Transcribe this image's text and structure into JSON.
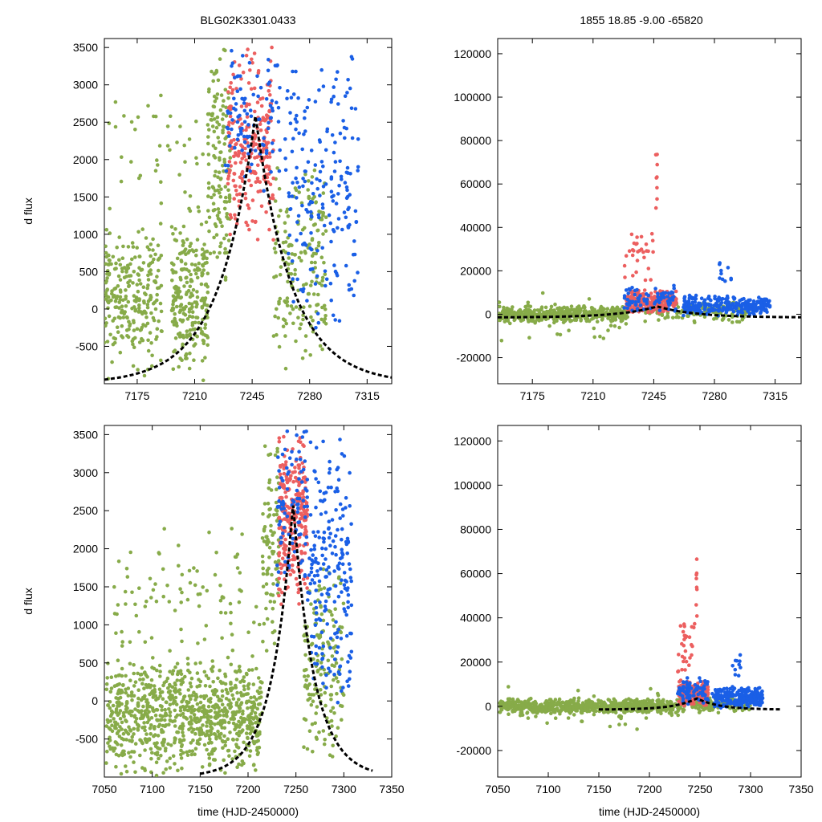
{
  "titles": {
    "left": "BLG02K3301.0433",
    "right": "1855  18.85  -9.00  -65820"
  },
  "colors": {
    "green": "#87ab49",
    "red": "#ec5f5f",
    "blue": "#1a5fe6",
    "model": "#000000",
    "axis": "#000000"
  },
  "chart_data": [
    {
      "id": "top-left",
      "type": "scatter",
      "xlabel": "",
      "ylabel": "d flux",
      "xlim": [
        7155,
        7330
      ],
      "ylim": [
        -1000,
        3620
      ],
      "xticks": [
        7175,
        7210,
        7245,
        7280,
        7315
      ],
      "yticks": [
        -500,
        0,
        500,
        1000,
        1500,
        2000,
        2500,
        3000,
        3500
      ],
      "series": [
        {
          "name": "survey-green",
          "color": "green",
          "seed": 11,
          "clusters": [
            {
              "x0": 7155,
              "x1": 7190,
              "ymin": -1000,
              "ymax": 1200,
              "n": 260
            },
            {
              "x0": 7196,
              "x1": 7218,
              "ymin": -1000,
              "ymax": 1400,
              "n": 240
            },
            {
              "x0": 7218,
              "x1": 7232,
              "ymin": 200,
              "ymax": 3600,
              "n": 140
            },
            {
              "x0": 7258,
              "x1": 7290,
              "ymin": -900,
              "ymax": 2000,
              "n": 180
            },
            {
              "x0": 7155,
              "x1": 7215,
              "ymin": 1200,
              "ymax": 3000,
              "n": 40
            }
          ]
        },
        {
          "name": "followup-red",
          "color": "red",
          "seed": 23,
          "clusters": [
            {
              "x0": 7230,
              "x1": 7258,
              "ymin": 800,
              "ymax": 3600,
              "n": 240
            }
          ]
        },
        {
          "name": "followup-blue",
          "color": "blue",
          "seed": 37,
          "clusters": [
            {
              "x0": 7228,
              "x1": 7262,
              "ymin": 1500,
              "ymax": 3600,
              "n": 100
            },
            {
              "x0": 7265,
              "x1": 7310,
              "ymin": -500,
              "ymax": 3600,
              "n": 200
            }
          ]
        }
      ],
      "model": {
        "t0": 7247,
        "peak": 2600,
        "base": -1000,
        "tau": 22,
        "x0": 7155,
        "x1": 7330
      }
    },
    {
      "id": "top-right",
      "type": "scatter",
      "xlabel": "",
      "ylabel": "",
      "xlim": [
        7155,
        7330
      ],
      "ylim": [
        -32000,
        127000
      ],
      "xticks": [
        7175,
        7210,
        7245,
        7280,
        7315
      ],
      "yticks": [
        -20000,
        0,
        20000,
        40000,
        60000,
        80000,
        100000,
        120000
      ],
      "series": [
        {
          "name": "survey-green",
          "color": "green",
          "seed": 41,
          "clusters": [
            {
              "x0": 7155,
              "x1": 7230,
              "ymin": -4000,
              "ymax": 4000,
              "n": 420
            },
            {
              "x0": 7155,
              "x1": 7230,
              "ymin": -15000,
              "ymax": 12000,
              "n": 40
            },
            {
              "x0": 7240,
              "x1": 7300,
              "ymin": -4000,
              "ymax": 6000,
              "n": 150
            }
          ]
        },
        {
          "name": "followup-red",
          "color": "red",
          "seed": 53,
          "clusters": [
            {
              "x0": 7229,
              "x1": 7258,
              "ymin": 0,
              "ymax": 12000,
              "n": 260
            },
            {
              "x0": 7228,
              "x1": 7245,
              "ymin": 12000,
              "ymax": 42000,
              "n": 30
            },
            {
              "x0": 7246,
              "x1": 7247,
              "ymin": 36000,
              "ymax": 83000,
              "n": 8
            }
          ]
        },
        {
          "name": "followup-blue",
          "color": "blue",
          "seed": 67,
          "clusters": [
            {
              "x0": 7228,
              "x1": 7258,
              "ymin": 0,
              "ymax": 14000,
              "n": 80
            },
            {
              "x0": 7262,
              "x1": 7312,
              "ymin": -1000,
              "ymax": 9000,
              "n": 260
            },
            {
              "x0": 7282,
              "x1": 7290,
              "ymin": 10000,
              "ymax": 28000,
              "n": 10
            }
          ]
        }
      ],
      "model": {
        "t0": 7247,
        "peak": 3600,
        "base": -1500,
        "tau": 22,
        "x0": 7155,
        "x1": 7330
      }
    },
    {
      "id": "bottom-left",
      "type": "scatter",
      "xlabel": "time (HJD-2450000)",
      "ylabel": "d flux",
      "xlim": [
        7050,
        7350
      ],
      "ylim": [
        -1000,
        3620
      ],
      "xticks": [
        7050,
        7100,
        7150,
        7200,
        7250,
        7300,
        7350
      ],
      "yticks": [
        -500,
        0,
        500,
        1000,
        1500,
        2000,
        2500,
        3000,
        3500
      ],
      "series": [
        {
          "name": "survey-green",
          "color": "green",
          "seed": 71,
          "clusters": [
            {
              "x0": 7052,
              "x1": 7215,
              "ymin": -1000,
              "ymax": 600,
              "n": 900
            },
            {
              "x0": 7060,
              "x1": 7215,
              "ymin": 400,
              "ymax": 2400,
              "n": 90
            },
            {
              "x0": 7215,
              "x1": 7232,
              "ymin": 500,
              "ymax": 3600,
              "n": 90
            },
            {
              "x0": 7258,
              "x1": 7300,
              "ymin": -900,
              "ymax": 2000,
              "n": 160
            }
          ]
        },
        {
          "name": "followup-red",
          "color": "red",
          "seed": 83,
          "clusters": [
            {
              "x0": 7232,
              "x1": 7262,
              "ymin": 1200,
              "ymax": 3600,
              "n": 280
            }
          ]
        },
        {
          "name": "followup-blue",
          "color": "blue",
          "seed": 97,
          "clusters": [
            {
              "x0": 7230,
              "x1": 7262,
              "ymin": 1500,
              "ymax": 3600,
              "n": 90
            },
            {
              "x0": 7262,
              "x1": 7308,
              "ymin": -300,
              "ymax": 3600,
              "n": 210
            }
          ]
        }
      ],
      "model": {
        "t0": 7247,
        "peak": 2600,
        "base": -1000,
        "tau": 22,
        "x0": 7150,
        "x1": 7330
      }
    },
    {
      "id": "bottom-right",
      "type": "scatter",
      "xlabel": "time (HJD-2450000)",
      "ylabel": "",
      "xlim": [
        7050,
        7350
      ],
      "ylim": [
        -32000,
        127000
      ],
      "xticks": [
        7050,
        7100,
        7150,
        7200,
        7250,
        7300,
        7350
      ],
      "yticks": [
        -20000,
        0,
        20000,
        40000,
        60000,
        80000,
        100000,
        120000
      ],
      "series": [
        {
          "name": "survey-green",
          "color": "green",
          "seed": 101,
          "clusters": [
            {
              "x0": 7052,
              "x1": 7235,
              "ymin": -3500,
              "ymax": 3500,
              "n": 700
            },
            {
              "x0": 7060,
              "x1": 7235,
              "ymin": -12000,
              "ymax": 10000,
              "n": 50
            },
            {
              "x0": 7240,
              "x1": 7300,
              "ymin": -3000,
              "ymax": 5000,
              "n": 120
            }
          ]
        },
        {
          "name": "followup-red",
          "color": "red",
          "seed": 113,
          "clusters": [
            {
              "x0": 7229,
              "x1": 7258,
              "ymin": 0,
              "ymax": 12000,
              "n": 250
            },
            {
              "x0": 7228,
              "x1": 7245,
              "ymin": 12000,
              "ymax": 42000,
              "n": 30
            },
            {
              "x0": 7246,
              "x1": 7247,
              "ymin": 36000,
              "ymax": 83000,
              "n": 8
            }
          ]
        },
        {
          "name": "followup-blue",
          "color": "blue",
          "seed": 127,
          "clusters": [
            {
              "x0": 7228,
              "x1": 7258,
              "ymin": 0,
              "ymax": 14000,
              "n": 80
            },
            {
              "x0": 7262,
              "x1": 7312,
              "ymin": -1000,
              "ymax": 9000,
              "n": 240
            },
            {
              "x0": 7282,
              "x1": 7290,
              "ymin": 10000,
              "ymax": 25000,
              "n": 10
            }
          ]
        }
      ],
      "model": {
        "t0": 7247,
        "peak": 3600,
        "base": -1500,
        "tau": 22,
        "x0": 7150,
        "x1": 7330
      }
    }
  ]
}
